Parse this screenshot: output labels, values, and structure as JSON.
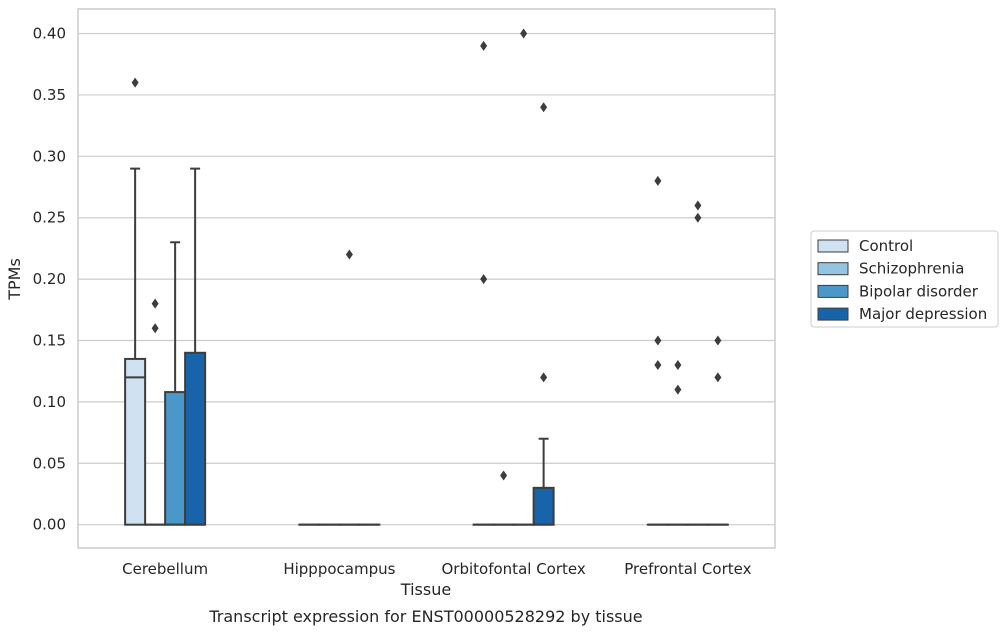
{
  "chart_data": {
    "type": "box",
    "xlabel": "Tissue",
    "ylabel": "TPMs",
    "caption": "Transcript expression for ENST00000528292 by tissue",
    "ylim": [
      -0.019,
      0.42
    ],
    "yticks": [
      "0.00",
      "0.05",
      "0.10",
      "0.15",
      "0.20",
      "0.25",
      "0.30",
      "0.35",
      "0.40"
    ],
    "categories": [
      "Cerebellum",
      "Hipppocampus",
      "Orbitofontal Cortex",
      "Prefrontal Cortex"
    ],
    "grid": "horizontal",
    "legend_position": "right",
    "series": [
      {
        "name": "Control",
        "color": "#d0e1f2",
        "boxes": [
          {
            "q1": 0.0,
            "median": 0.12,
            "q3": 0.135,
            "whisker_low": 0.0,
            "whisker_high": 0.29,
            "outliers": [
              0.36
            ]
          },
          {
            "q1": 0.0,
            "median": 0.0,
            "q3": 0.0,
            "whisker_low": 0.0,
            "whisker_high": 0.0,
            "outliers": []
          },
          {
            "q1": 0.0,
            "median": 0.0,
            "q3": 0.0,
            "whisker_low": 0.0,
            "whisker_high": 0.0,
            "outliers": [
              0.39,
              0.2
            ]
          },
          {
            "q1": 0.0,
            "median": 0.0,
            "q3": 0.0,
            "whisker_low": 0.0,
            "whisker_high": 0.0,
            "outliers": [
              0.28,
              0.15,
              0.13
            ]
          }
        ]
      },
      {
        "name": "Schizophrenia",
        "color": "#94c4df",
        "boxes": [
          {
            "q1": 0.0,
            "median": 0.0,
            "q3": 0.0,
            "whisker_low": 0.0,
            "whisker_high": 0.0,
            "outliers": [
              0.18,
              0.16
            ]
          },
          {
            "q1": 0.0,
            "median": 0.0,
            "q3": 0.0,
            "whisker_low": 0.0,
            "whisker_high": 0.0,
            "outliers": []
          },
          {
            "q1": 0.0,
            "median": 0.0,
            "q3": 0.0,
            "whisker_low": 0.0,
            "whisker_high": 0.0,
            "outliers": [
              0.04
            ]
          },
          {
            "q1": 0.0,
            "median": 0.0,
            "q3": 0.0,
            "whisker_low": 0.0,
            "whisker_high": 0.0,
            "outliers": [
              0.13,
              0.11
            ]
          }
        ]
      },
      {
        "name": "Bipolar disorder",
        "color": "#4a98c9",
        "boxes": [
          {
            "q1": 0.0,
            "median": 0.0,
            "q3": 0.108,
            "whisker_low": 0.0,
            "whisker_high": 0.23,
            "outliers": []
          },
          {
            "q1": 0.0,
            "median": 0.0,
            "q3": 0.0,
            "whisker_low": 0.0,
            "whisker_high": 0.0,
            "outliers": [
              0.22
            ]
          },
          {
            "q1": 0.0,
            "median": 0.0,
            "q3": 0.0,
            "whisker_low": 0.0,
            "whisker_high": 0.0,
            "outliers": [
              0.4
            ]
          },
          {
            "q1": 0.0,
            "median": 0.0,
            "q3": 0.0,
            "whisker_low": 0.0,
            "whisker_high": 0.0,
            "outliers": [
              0.26,
              0.25
            ]
          }
        ]
      },
      {
        "name": "Major depression",
        "color": "#1764ab",
        "boxes": [
          {
            "q1": 0.0,
            "median": 0.0,
            "q3": 0.14,
            "whisker_low": 0.0,
            "whisker_high": 0.29,
            "outliers": []
          },
          {
            "q1": 0.0,
            "median": 0.0,
            "q3": 0.0,
            "whisker_low": 0.0,
            "whisker_high": 0.0,
            "outliers": []
          },
          {
            "q1": 0.0,
            "median": 0.0,
            "q3": 0.03,
            "whisker_low": 0.0,
            "whisker_high": 0.07,
            "outliers": [
              0.34,
              0.12
            ]
          },
          {
            "q1": 0.0,
            "median": 0.0,
            "q3": 0.0,
            "whisker_low": 0.0,
            "whisker_high": 0.0,
            "outliers": [
              0.15,
              0.12
            ]
          }
        ]
      }
    ]
  }
}
